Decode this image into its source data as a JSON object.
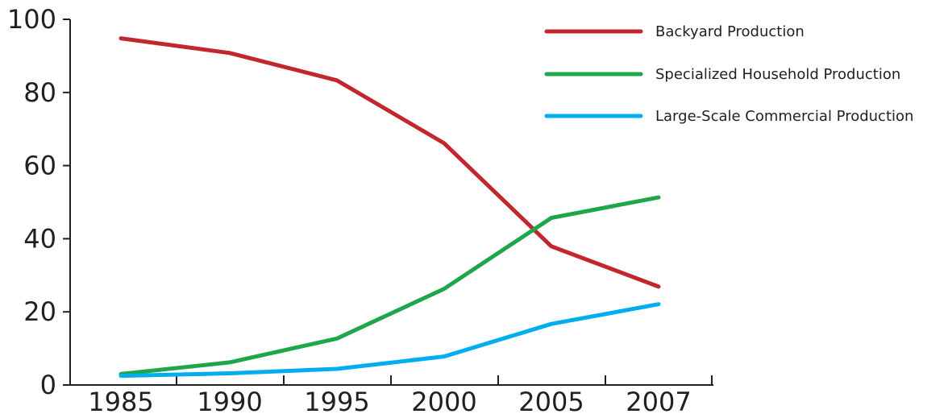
{
  "chart_data": {
    "type": "line",
    "title": "",
    "xlabel": "",
    "ylabel": "",
    "categories": [
      "1985",
      "1990",
      "1995",
      "2000",
      "2005",
      "2007"
    ],
    "ylim": [
      0,
      100
    ],
    "y_ticks": [
      "0",
      "20",
      "40",
      "60",
      "80",
      "100"
    ],
    "grid": false,
    "legend_position": "top-right",
    "series": [
      {
        "name": "Backyard Production",
        "color": "#c1272d",
        "values": [
          94.8,
          90.8,
          83.3,
          66.1,
          37.9,
          26.9
        ]
      },
      {
        "name": "Specialized Household Production",
        "color": "#1fa64a",
        "values": [
          3.0,
          6.2,
          12.7,
          26.3,
          45.7,
          51.3
        ]
      },
      {
        "name": "Large-Scale Commercial Production",
        "color": "#00aeef",
        "values": [
          2.5,
          3.2,
          4.4,
          7.8,
          16.7,
          22.1
        ]
      }
    ]
  }
}
